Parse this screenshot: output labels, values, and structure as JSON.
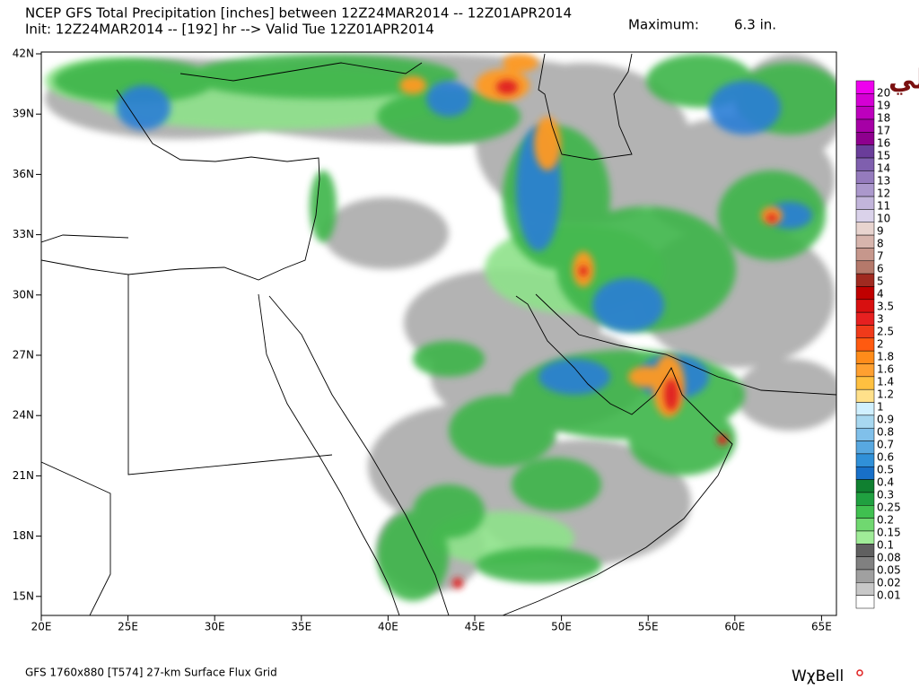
{
  "header": {
    "title": "NCEP GFS Total Precipitation [inches] between 12Z24MAR2014 -- 12Z01APR2014",
    "subtitle": "Init: 12Z24MAR2014 -- [192] hr --> Valid Tue 12Z01APR2014",
    "maximum_label": "Maximum:",
    "maximum_value": "6.3 in."
  },
  "map": {
    "lat_labels": [
      "42N",
      "39N",
      "36N",
      "33N",
      "30N",
      "27N",
      "24N",
      "21N",
      "18N",
      "15N"
    ],
    "lon_labels": [
      "20E",
      "25E",
      "30E",
      "35E",
      "40E",
      "45E",
      "50E",
      "55E",
      "60E",
      "65E"
    ]
  },
  "colorbar": {
    "levels": [
      {
        "label": "20",
        "color": "#ee00ee"
      },
      {
        "label": "19",
        "color": "#d400d4"
      },
      {
        "label": "18",
        "color": "#bd00bd"
      },
      {
        "label": "17",
        "color": "#a600a6"
      },
      {
        "label": "16",
        "color": "#8e008e"
      },
      {
        "label": "15",
        "color": "#6a3d9a"
      },
      {
        "label": "14",
        "color": "#7f5fae"
      },
      {
        "label": "13",
        "color": "#957bbd"
      },
      {
        "label": "12",
        "color": "#ab98cc"
      },
      {
        "label": "11",
        "color": "#c2b5db"
      },
      {
        "label": "10",
        "color": "#dad2ea"
      },
      {
        "label": "9",
        "color": "#e8d4cf"
      },
      {
        "label": "8",
        "color": "#d7b5ad"
      },
      {
        "label": "7",
        "color": "#c6978c"
      },
      {
        "label": "6",
        "color": "#b5796b"
      },
      {
        "label": "5",
        "color": "#a02a20"
      },
      {
        "label": "4",
        "color": "#c00000"
      },
      {
        "label": "3.5",
        "color": "#d81010"
      },
      {
        "label": "3",
        "color": "#e62020"
      },
      {
        "label": "2.5",
        "color": "#f03a1a"
      },
      {
        "label": "2",
        "color": "#ff5a10"
      },
      {
        "label": "1.8",
        "color": "#ff8c1a"
      },
      {
        "label": "1.6",
        "color": "#ffa030"
      },
      {
        "label": "1.4",
        "color": "#ffc040"
      },
      {
        "label": "1.2",
        "color": "#ffe08a"
      },
      {
        "label": "1",
        "color": "#d0f0ff"
      },
      {
        "label": "0.9",
        "color": "#a8d8f0"
      },
      {
        "label": "0.8",
        "color": "#80c0ea"
      },
      {
        "label": "0.7",
        "color": "#58a8e0"
      },
      {
        "label": "0.6",
        "color": "#3090d8"
      },
      {
        "label": "0.5",
        "color": "#1870c8"
      },
      {
        "label": "0.4",
        "color": "#108030"
      },
      {
        "label": "0.3",
        "color": "#20a040"
      },
      {
        "label": "0.25",
        "color": "#40c050"
      },
      {
        "label": "0.2",
        "color": "#70d870"
      },
      {
        "label": "0.15",
        "color": "#a0ec98"
      },
      {
        "label": "0.1",
        "color": "#606060"
      },
      {
        "label": "0.08",
        "color": "#808080"
      },
      {
        "label": "0.05",
        "color": "#a0a0a0"
      },
      {
        "label": "0.02",
        "color": "#c8c8c8"
      },
      {
        "label": "0.01",
        "color": "#ffffff"
      }
    ]
  },
  "footer": {
    "grid_info": "GFS 1760x880 [T574] 27-km Surface Flux Grid",
    "brand": "WχBell"
  },
  "watermark": "تركي الروايلي"
}
